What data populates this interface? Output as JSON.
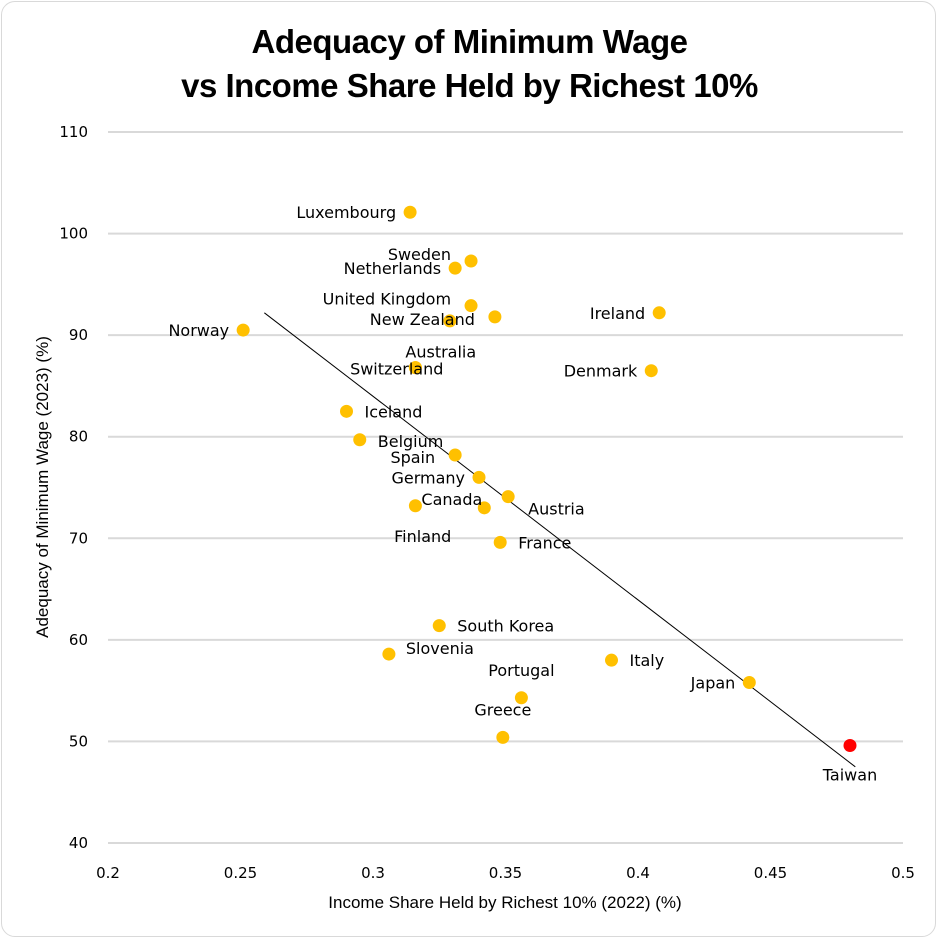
{
  "chart_data": {
    "type": "scatter",
    "title_line1": "Adequacy of Minimum Wage",
    "title_line2": "vs Income Share Held by Richest 10%",
    "xlabel": "Income Share Held by Richest 10% (2022) (%)",
    "ylabel": "Adequacy of Minimum Wage (2023) (%)",
    "xlim": [
      0.2,
      0.5
    ],
    "ylim": [
      40,
      110
    ],
    "xticks": [
      0.2,
      0.25,
      0.3,
      0.35,
      0.4,
      0.45,
      0.5
    ],
    "xtick_labels": [
      "0.2",
      "0.25",
      "0.3",
      "0.35",
      "0.4",
      "0.45",
      "0.5"
    ],
    "yticks": [
      40,
      50,
      60,
      70,
      80,
      90,
      100,
      110
    ],
    "ytick_labels": [
      "40",
      "50",
      "60",
      "70",
      "80",
      "90",
      "100",
      "110"
    ],
    "grid": "horizontal",
    "colors": {
      "default": "#FFC000",
      "highlight": "#FF0000",
      "grid": "#d9d9d9",
      "trendline": "#000000"
    },
    "points": [
      {
        "name": "Luxembourg",
        "x": 0.314,
        "y": 102.1,
        "label_pos": "left"
      },
      {
        "name": "Sweden",
        "x": 0.337,
        "y": 97.3,
        "label_pos": "upper-left"
      },
      {
        "name": "Netherlands",
        "x": 0.331,
        "y": 96.6,
        "label_pos": "left"
      },
      {
        "name": "United Kingdom",
        "x": 0.337,
        "y": 92.9,
        "label_pos": "upper-left"
      },
      {
        "name": "New Zealand",
        "x": 0.346,
        "y": 91.8,
        "label_pos": "left"
      },
      {
        "name": "Norway",
        "x": 0.251,
        "y": 90.5,
        "label_pos": "left"
      },
      {
        "name": "Ireland",
        "x": 0.408,
        "y": 92.2,
        "label_pos": "left"
      },
      {
        "name": "Australia",
        "x": 0.316,
        "y": 86.8,
        "label_pos": "upper-right"
      },
      {
        "name": "Switzerland",
        "x": 0.316,
        "y": 86.8,
        "label_pos": "center"
      },
      {
        "name": "New Zealand-dot",
        "x": 0.329,
        "y": 91.4,
        "label_pos": "none"
      },
      {
        "name": "Denmark",
        "x": 0.405,
        "y": 86.5,
        "label_pos": "left"
      },
      {
        "name": "Iceland",
        "x": 0.29,
        "y": 82.5,
        "label_pos": "right"
      },
      {
        "name": "Belgium",
        "x": 0.295,
        "y": 79.7,
        "label_pos": "right"
      },
      {
        "name": "Spain",
        "x": 0.331,
        "y": 78.2,
        "label_pos": "left"
      },
      {
        "name": "Germany",
        "x": 0.34,
        "y": 76.0,
        "label_pos": "left"
      },
      {
        "name": "Austria",
        "x": 0.351,
        "y": 74.1,
        "label_pos": "lower-right"
      },
      {
        "name": "Canada",
        "x": 0.316,
        "y": 73.2,
        "label_pos": "upper-right"
      },
      {
        "name": "Finland",
        "x": 0.342,
        "y": 73.0,
        "label_pos": "lower-left"
      },
      {
        "name": "France",
        "x": 0.348,
        "y": 69.6,
        "label_pos": "right"
      },
      {
        "name": "South Korea",
        "x": 0.325,
        "y": 61.4,
        "label_pos": "right"
      },
      {
        "name": "Slovenia",
        "x": 0.306,
        "y": 58.6,
        "label_pos": "right"
      },
      {
        "name": "Italy",
        "x": 0.39,
        "y": 58.0,
        "label_pos": "right"
      },
      {
        "name": "Portugal",
        "x": 0.356,
        "y": 54.3,
        "label_pos": "above"
      },
      {
        "name": "Japan",
        "x": 0.442,
        "y": 55.8,
        "label_pos": "left"
      },
      {
        "name": "Greece",
        "x": 0.349,
        "y": 50.4,
        "label_pos": "above"
      },
      {
        "name": "Taiwan",
        "x": 0.48,
        "y": 49.6,
        "label_pos": "below",
        "highlight": true
      }
    ],
    "trendline": {
      "x": [
        0.259,
        0.482
      ],
      "y": [
        92.2,
        47.5
      ]
    }
  }
}
